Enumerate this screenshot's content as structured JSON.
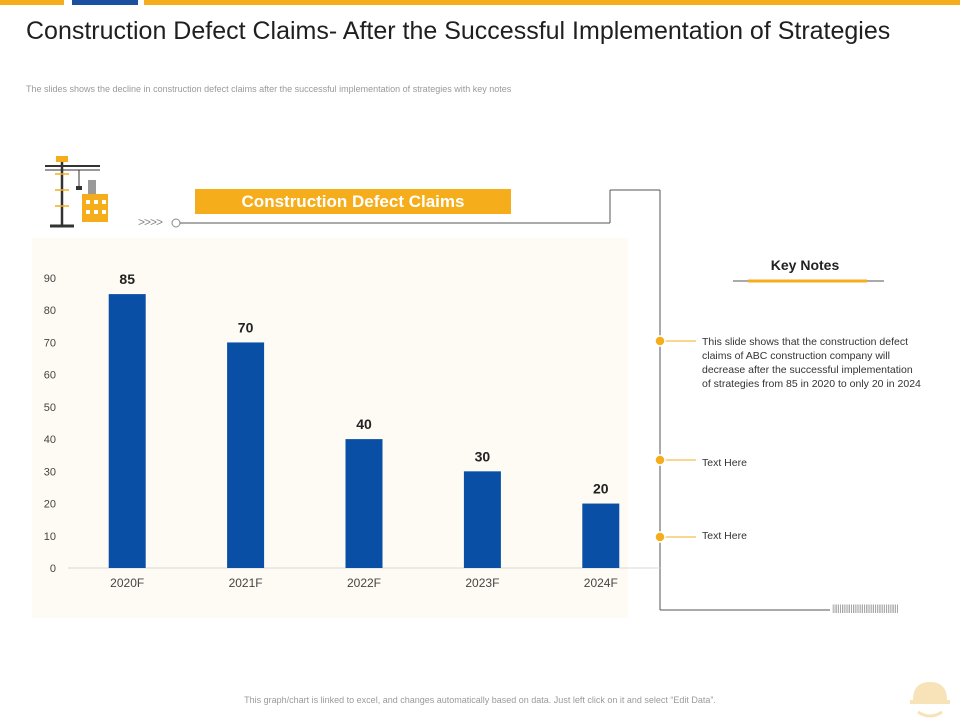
{
  "header": {
    "title": "Construction Defect Claims- After the Successful Implementation of Strategies",
    "subtitle": "The slides shows the decline in construction defect claims after the successful implementation of strategies with key notes"
  },
  "colors": {
    "accent": "#f5ad1c",
    "bar": "#0a4fa6",
    "brand_blue": "#1b4fa0"
  },
  "chart_data": {
    "type": "bar",
    "title": "Construction Defect Claims",
    "categories": [
      "2020F",
      "2021F",
      "2022F",
      "2023F",
      "2024F"
    ],
    "values": [
      85,
      70,
      40,
      30,
      20
    ],
    "ylim": [
      0,
      90
    ],
    "yticks": [
      0,
      10,
      20,
      30,
      40,
      50,
      60,
      70,
      80,
      90
    ],
    "xlabel": "",
    "ylabel": "",
    "legend": "none"
  },
  "decor": {
    "arrows": ">>>>",
    "ticks": "||||||||||||||||||||||||||||||||||||"
  },
  "key_notes": {
    "title": "Key Notes",
    "notes": [
      "This slide shows that the construction defect claims of ABC construction company will decrease after the successful implementation of strategies from 85 in 2020 to only 20 in 2024",
      "Text Here",
      "Text Here"
    ]
  },
  "footer": {
    "text": "This graph/chart is linked to excel, and changes automatically based on data. Just left click on it and select “Edit Data”."
  },
  "icons": [
    "crane-icon",
    "building-icon",
    "hardhat-icon"
  ]
}
